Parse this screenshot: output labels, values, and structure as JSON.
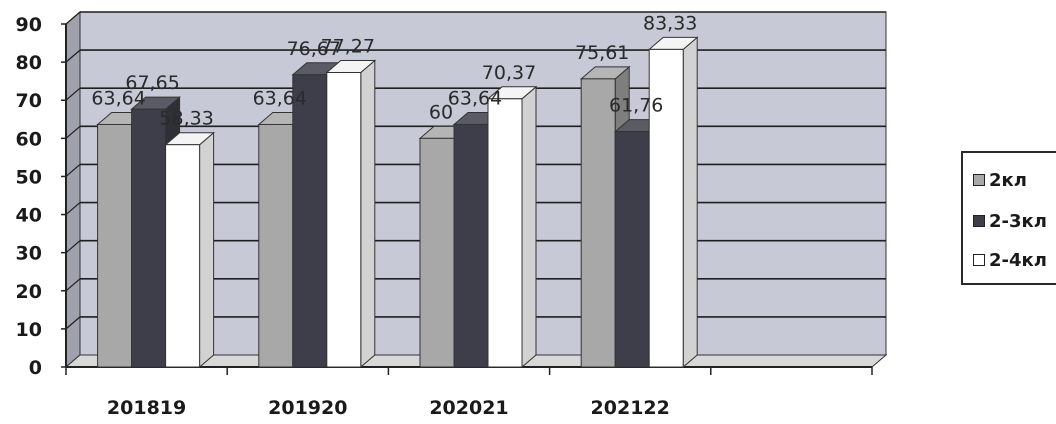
{
  "chart_data": {
    "type": "bar",
    "categories": [
      "201819",
      "201920",
      "202021",
      "202122"
    ],
    "series": [
      {
        "name": "2кл",
        "values": [
          63.64,
          63.64,
          60,
          75.61
        ],
        "labels": [
          "63,64",
          "63,64",
          "60",
          "75,61"
        ],
        "color": "#a8a8a8"
      },
      {
        "name": "2-3кл",
        "values": [
          67.65,
          76.67,
          63.64,
          61.76
        ],
        "labels": [
          "67,65",
          "76,67",
          "63,64",
          "61,76"
        ],
        "color": "#3e3e4a"
      },
      {
        "name": "2-4кл",
        "values": [
          58.33,
          77.27,
          70.37,
          83.33
        ],
        "labels": [
          "58,33",
          "77,27",
          "70,37",
          "83,33"
        ],
        "color": "#ffffff"
      }
    ],
    "y_ticks": [
      "0",
      "10",
      "20",
      "30",
      "40",
      "50",
      "60",
      "70",
      "80",
      "90"
    ],
    "ylim": [
      0,
      90
    ],
    "grid": true,
    "legend": "right",
    "colors": {
      "wall": "#c7c9d6",
      "floor": "#d8d8d8",
      "grid": "#1f1f1f"
    }
  }
}
